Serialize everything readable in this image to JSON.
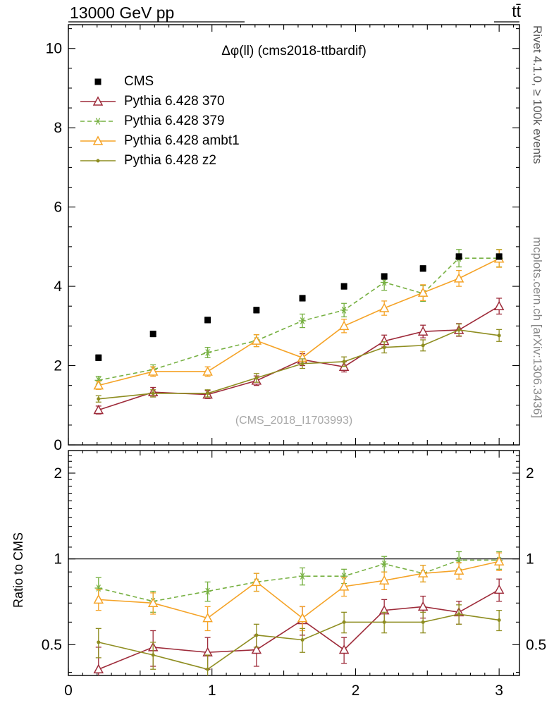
{
  "header": {
    "left": "13000 GeV pp",
    "right": "tt̄"
  },
  "side_labels": {
    "rivet": "Rivet 4.1.0, ≥ 100k events",
    "mcplots": "mcplots.cern.ch [arXiv:1306.3436]"
  },
  "chart_data": [
    {
      "type": "line",
      "title": "Δφ(ll) (cms2018-ttbardif)",
      "watermark": "(CMS_2018_I1703993)",
      "xlabel": "",
      "ylabel": "",
      "xlim": [
        0,
        3.1416
      ],
      "ylim": [
        0,
        10.6
      ],
      "xticks": [
        0,
        1,
        2,
        3
      ],
      "yticks": [
        0,
        2,
        4,
        6,
        8,
        10
      ],
      "legend_position": "top-left",
      "grid": false,
      "x": [
        0.21,
        0.59,
        0.97,
        1.31,
        1.63,
        1.92,
        2.2,
        2.47,
        2.72,
        3.0
      ],
      "series": [
        {
          "name": "CMS",
          "color": "#000000",
          "marker": "square-filled",
          "line": "none",
          "values": [
            2.2,
            2.8,
            3.15,
            3.4,
            3.7,
            4.0,
            4.25,
            4.45,
            4.75,
            4.75
          ],
          "errors": [
            0.07,
            0.07,
            0.07,
            0.07,
            0.07,
            0.07,
            0.07,
            0.07,
            0.07,
            0.07
          ]
        },
        {
          "name": "Pythia 6.428 370",
          "color": "#9e2b3a",
          "marker": "triangle-open",
          "line": "solid",
          "values": [
            0.88,
            1.33,
            1.27,
            1.62,
            2.15,
            1.97,
            2.62,
            2.86,
            2.9,
            3.5
          ],
          "errors": [
            0.1,
            0.12,
            0.1,
            0.12,
            0.15,
            0.13,
            0.15,
            0.16,
            0.16,
            0.2
          ]
        },
        {
          "name": "Pythia 6.428 379",
          "color": "#76b041",
          "marker": "star",
          "line": "dashed",
          "values": [
            1.63,
            1.9,
            2.33,
            2.63,
            3.13,
            3.4,
            4.1,
            3.82,
            4.71,
            4.71
          ],
          "errors": [
            0.1,
            0.12,
            0.13,
            0.15,
            0.17,
            0.17,
            0.2,
            0.2,
            0.22,
            0.22
          ]
        },
        {
          "name": "Pythia 6.428 ambt1",
          "color": "#f5a327",
          "marker": "triangle-open",
          "line": "solid",
          "values": [
            1.5,
            1.85,
            1.85,
            2.63,
            2.2,
            3.0,
            3.45,
            3.84,
            4.2,
            4.7
          ],
          "errors": [
            0.1,
            0.12,
            0.12,
            0.15,
            0.15,
            0.17,
            0.18,
            0.2,
            0.2,
            0.22
          ]
        },
        {
          "name": "Pythia 6.428 z2",
          "color": "#8e8d20",
          "marker": "dot",
          "line": "solid",
          "values": [
            1.16,
            1.3,
            1.3,
            1.69,
            2.05,
            2.1,
            2.46,
            2.51,
            2.9,
            2.76
          ],
          "errors": [
            0.08,
            0.09,
            0.09,
            0.11,
            0.12,
            0.12,
            0.14,
            0.14,
            0.15,
            0.15
          ]
        }
      ]
    },
    {
      "type": "line",
      "title": "",
      "ylabel": "Ratio to CMS",
      "yscale": "log",
      "xlim": [
        0,
        3.1416
      ],
      "ylim": [
        0.39,
        2.4
      ],
      "xticks": [
        0,
        1,
        2,
        3
      ],
      "yticks": [
        0.5,
        1,
        2
      ],
      "reference_line": 1,
      "x": [
        0.21,
        0.59,
        0.97,
        1.31,
        1.63,
        1.92,
        2.2,
        2.47,
        2.72,
        3.0
      ],
      "series": [
        {
          "name": "Pythia 6.428 370",
          "color": "#9e2b3a",
          "marker": "triangle-open",
          "line": "solid",
          "values": [
            0.41,
            0.49,
            0.47,
            0.48,
            0.61,
            0.48,
            0.66,
            0.68,
            0.65,
            0.78
          ],
          "errors": [
            0.08,
            0.07,
            0.06,
            0.06,
            0.07,
            0.05,
            0.06,
            0.06,
            0.06,
            0.07
          ]
        },
        {
          "name": "Pythia 6.428 379",
          "color": "#76b041",
          "marker": "star",
          "line": "dashed",
          "values": [
            0.79,
            0.71,
            0.77,
            0.83,
            0.87,
            0.87,
            0.96,
            0.89,
            0.99,
            0.99
          ],
          "errors": [
            0.07,
            0.06,
            0.06,
            0.06,
            0.06,
            0.05,
            0.06,
            0.06,
            0.07,
            0.07
          ]
        },
        {
          "name": "Pythia 6.428 ambt1",
          "color": "#f5a327",
          "marker": "triangle-open",
          "line": "solid",
          "values": [
            0.72,
            0.7,
            0.62,
            0.83,
            0.62,
            0.8,
            0.84,
            0.89,
            0.91,
            0.98
          ],
          "errors": [
            0.06,
            0.06,
            0.06,
            0.06,
            0.06,
            0.06,
            0.06,
            0.06,
            0.06,
            0.07
          ]
        },
        {
          "name": "Pythia 6.428 z2",
          "color": "#8e8d20",
          "marker": "dot",
          "line": "solid",
          "values": [
            0.51,
            0.46,
            0.41,
            0.54,
            0.52,
            0.6,
            0.6,
            0.6,
            0.64,
            0.61
          ],
          "errors": [
            0.06,
            0.05,
            0.05,
            0.05,
            0.05,
            0.05,
            0.05,
            0.05,
            0.05,
            0.05
          ]
        }
      ]
    }
  ]
}
